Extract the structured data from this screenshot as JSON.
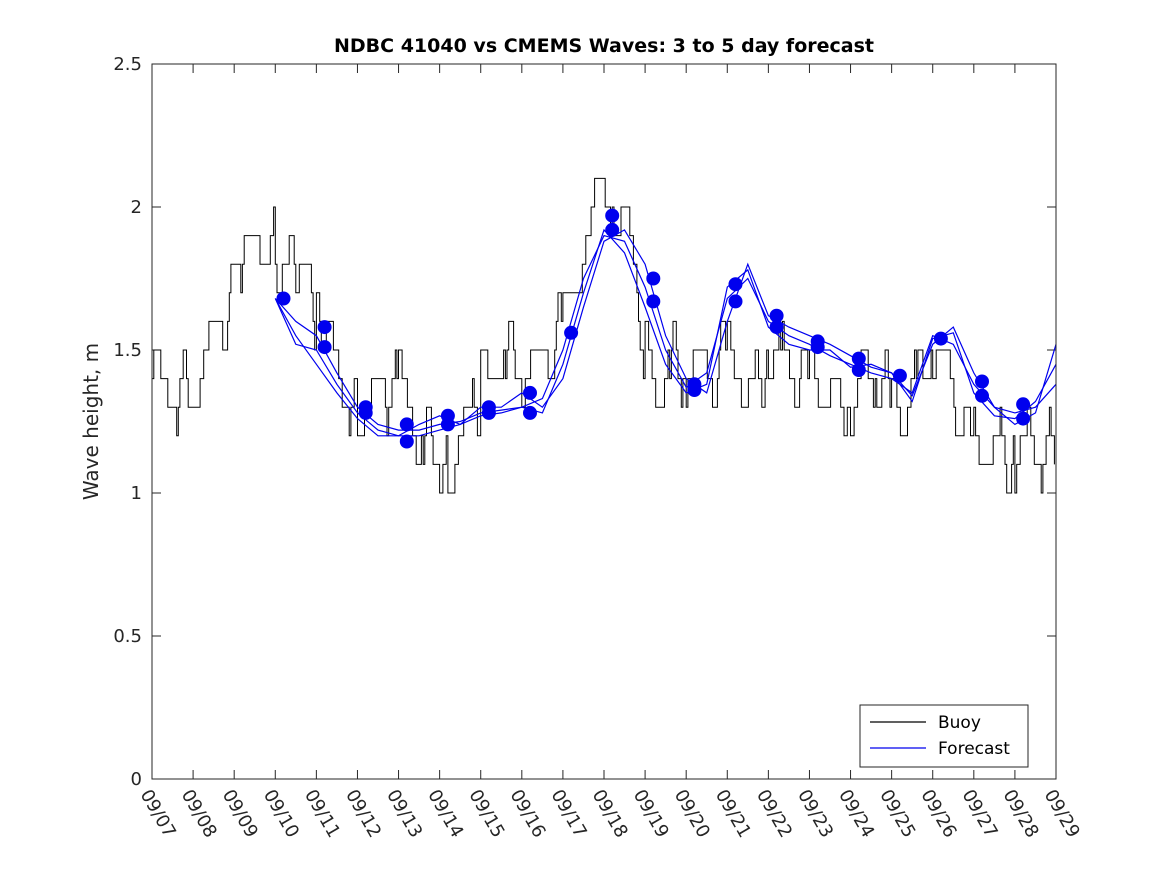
{
  "chart_data": {
    "type": "line",
    "title": "NDBC 41040 vs CMEMS Waves: 3 to 5 day forecast",
    "xlabel": "",
    "ylabel": "Wave height, m",
    "ylim": [
      0,
      2.5
    ],
    "xlim": [
      "09/07",
      "09/29"
    ],
    "y_ticks": [
      "0",
      "0.5",
      "1",
      "1.5",
      "2",
      "2.5"
    ],
    "x_ticks": [
      "09/07",
      "09/08",
      "09/09",
      "09/10",
      "09/11",
      "09/12",
      "09/13",
      "09/14",
      "09/15",
      "09/16",
      "09/17",
      "09/18",
      "09/19",
      "09/20",
      "09/21",
      "09/22",
      "09/23",
      "09/24",
      "09/25",
      "09/26",
      "09/27",
      "09/28",
      "09/29"
    ],
    "grid": false,
    "legend": {
      "position": "bottom-right",
      "entries": [
        "Buoy",
        "Forecast"
      ]
    },
    "colors": {
      "buoy": "#000000",
      "forecast": "#0000ee",
      "axis": "#262626"
    },
    "series": [
      {
        "name": "Buoy",
        "note_style": "stepped hourly, 0.1 m resolution",
        "x_day": [
          7.0,
          7.3,
          7.6,
          8.0,
          8.3,
          8.6,
          9.0,
          9.2,
          9.5,
          9.8,
          10.0,
          10.3,
          10.5,
          10.8,
          11.0,
          11.2,
          11.5,
          11.8,
          12.0,
          12.3,
          12.6,
          13.0,
          13.3,
          13.6,
          14.0,
          14.2,
          14.5,
          14.8,
          15.0,
          15.3,
          15.6,
          16.0,
          16.3,
          16.6,
          17.0,
          17.3,
          17.6,
          17.9,
          18.2,
          18.5,
          18.8,
          19.0,
          19.3,
          19.6,
          20.0,
          20.3,
          20.6,
          21.0,
          21.3,
          21.6,
          22.0,
          22.3,
          22.6,
          23.0,
          23.3,
          23.6,
          24.0,
          24.3,
          24.6,
          25.0,
          25.3,
          25.6,
          26.0,
          26.3,
          26.6,
          27.0,
          27.3,
          27.6,
          28.0,
          28.3,
          28.6,
          29.0
        ],
        "y": [
          1.35,
          1.4,
          1.35,
          1.4,
          1.5,
          1.55,
          1.7,
          1.8,
          1.85,
          1.9,
          1.85,
          1.8,
          1.75,
          1.7,
          1.6,
          1.5,
          1.45,
          1.35,
          1.3,
          1.3,
          1.35,
          1.35,
          1.3,
          1.2,
          1.15,
          1.1,
          1.2,
          1.25,
          1.35,
          1.45,
          1.5,
          1.45,
          1.4,
          1.45,
          1.6,
          1.8,
          1.9,
          2.0,
          2.05,
          1.95,
          1.65,
          1.5,
          1.4,
          1.45,
          1.45,
          1.4,
          1.4,
          1.5,
          1.45,
          1.35,
          1.5,
          1.45,
          1.4,
          1.45,
          1.4,
          1.35,
          1.3,
          1.35,
          1.4,
          1.35,
          1.35,
          1.4,
          1.5,
          1.4,
          1.3,
          1.2,
          1.2,
          1.15,
          1.1,
          1.15,
          1.15,
          1.15
        ]
      },
      {
        "name": "Forecast",
        "x_day": [
          10.0,
          10.5,
          11.0,
          11.5,
          12.0,
          12.5,
          13.0,
          13.5,
          14.0,
          14.5,
          15.0,
          15.5,
          16.0,
          16.5,
          17.0,
          17.5,
          18.0,
          18.5,
          19.0,
          19.5,
          20.0,
          20.5,
          21.0,
          21.5,
          22.0,
          22.5,
          23.0,
          23.5,
          24.0,
          24.5,
          25.0,
          25.5,
          26.0,
          26.5,
          27.0,
          27.5,
          28.0,
          28.5,
          29.0
        ],
        "y": [
          1.68,
          1.6,
          1.55,
          1.42,
          1.3,
          1.24,
          1.22,
          1.22,
          1.24,
          1.25,
          1.28,
          1.29,
          1.3,
          1.33,
          1.5,
          1.75,
          1.9,
          1.88,
          1.72,
          1.5,
          1.37,
          1.42,
          1.68,
          1.75,
          1.6,
          1.55,
          1.52,
          1.48,
          1.45,
          1.42,
          1.4,
          1.35,
          1.55,
          1.52,
          1.38,
          1.3,
          1.28,
          1.3,
          1.38
        ]
      },
      {
        "name": "Forecast",
        "x_day": [
          10.0,
          10.5,
          11.0,
          11.5,
          12.0,
          12.5,
          13.0,
          13.5,
          14.0,
          14.5,
          15.0,
          15.5,
          16.0,
          16.5,
          17.0,
          17.5,
          18.0,
          18.5,
          19.0,
          19.5,
          20.0,
          20.5,
          21.0,
          21.5,
          22.0,
          22.5,
          23.0,
          23.5,
          24.0,
          24.5,
          25.0,
          25.5,
          26.0,
          26.5,
          27.0,
          27.5,
          28.0,
          28.5,
          29.0
        ],
        "y": [
          1.68,
          1.52,
          1.5,
          1.38,
          1.28,
          1.22,
          1.2,
          1.2,
          1.22,
          1.24,
          1.27,
          1.28,
          1.3,
          1.28,
          1.45,
          1.7,
          1.92,
          1.84,
          1.65,
          1.45,
          1.35,
          1.38,
          1.72,
          1.78,
          1.58,
          1.52,
          1.5,
          1.5,
          1.44,
          1.45,
          1.42,
          1.32,
          1.54,
          1.56,
          1.35,
          1.27,
          1.26,
          1.32,
          1.45
        ]
      },
      {
        "name": "Forecast",
        "x_day": [
          10.0,
          10.5,
          11.0,
          11.5,
          12.0,
          12.5,
          13.0,
          13.5,
          14.0,
          14.5,
          15.0,
          15.5,
          16.0,
          16.5,
          17.0,
          17.5,
          18.0,
          18.5,
          19.0,
          19.5,
          20.0,
          20.5,
          21.0,
          21.5,
          22.0,
          22.5,
          23.0,
          23.5,
          24.0,
          24.5,
          25.0,
          25.5,
          26.0,
          26.5,
          27.0,
          27.5,
          28.0,
          28.5,
          29.0
        ],
        "y": [
          1.68,
          1.55,
          1.45,
          1.35,
          1.26,
          1.2,
          1.2,
          1.24,
          1.27,
          1.24,
          1.3,
          1.3,
          1.35,
          1.3,
          1.4,
          1.65,
          1.88,
          1.92,
          1.8,
          1.55,
          1.4,
          1.35,
          1.6,
          1.8,
          1.62,
          1.58,
          1.55,
          1.52,
          1.48,
          1.44,
          1.42,
          1.34,
          1.52,
          1.58,
          1.42,
          1.3,
          1.24,
          1.28,
          1.52
        ]
      },
      {
        "name": "",
        "note_style": "blue filled circle markers",
        "x_day": [
          10.2,
          11.2,
          11.2,
          12.2,
          12.2,
          13.2,
          13.2,
          14.2,
          14.2,
          15.2,
          15.2,
          16.2,
          16.2,
          17.2,
          18.2,
          18.2,
          19.2,
          19.2,
          20.2,
          20.2,
          21.2,
          21.2,
          22.2,
          22.2,
          23.2,
          23.2,
          24.2,
          24.2,
          25.2,
          26.2,
          27.2,
          27.2,
          28.2,
          28.2
        ],
        "y": [
          1.68,
          1.58,
          1.51,
          1.3,
          1.28,
          1.24,
          1.18,
          1.27,
          1.24,
          1.3,
          1.28,
          1.35,
          1.28,
          1.56,
          1.97,
          1.92,
          1.75,
          1.67,
          1.38,
          1.36,
          1.73,
          1.67,
          1.62,
          1.58,
          1.53,
          1.51,
          1.47,
          1.43,
          1.41,
          1.54,
          1.39,
          1.34,
          1.31,
          1.26
        ]
      }
    ]
  }
}
